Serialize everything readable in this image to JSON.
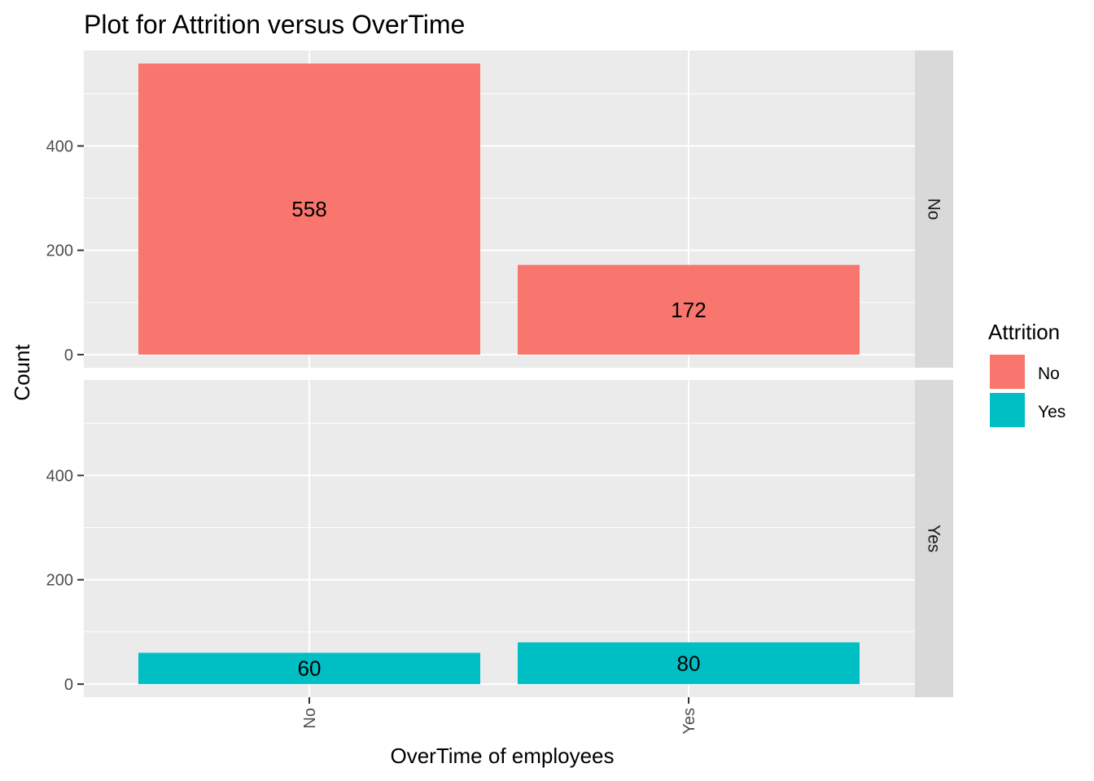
{
  "chart_data": {
    "type": "bar",
    "title": "Plot for Attrition versus OverTime",
    "xlabel": "OverTime of employees",
    "ylabel": "Count",
    "categories": [
      "No",
      "Yes"
    ],
    "facets": [
      "No",
      "Yes"
    ],
    "series": [
      {
        "name": "No",
        "color": "#F8766D",
        "values": [
          558,
          172
        ]
      },
      {
        "name": "Yes",
        "color": "#00BFC4",
        "values": [
          60,
          80
        ]
      }
    ],
    "ylim": [
      0,
      558
    ],
    "yticks": [
      0,
      200,
      400
    ],
    "grid": true,
    "legend": {
      "title": "Attrition",
      "position": "right",
      "items": [
        "No",
        "Yes"
      ]
    }
  }
}
